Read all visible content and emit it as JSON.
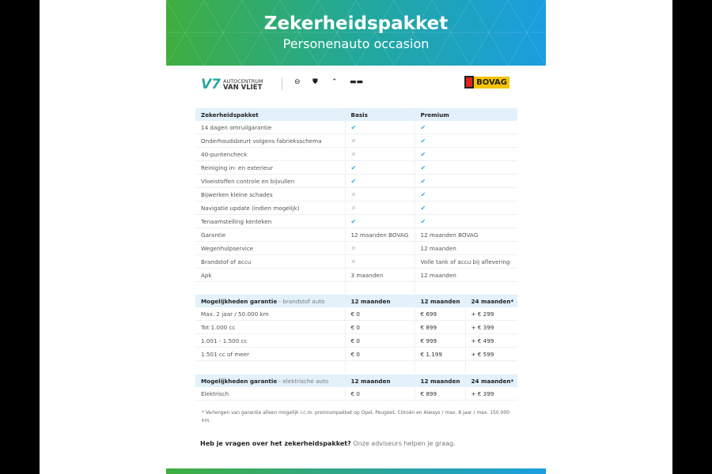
{
  "header": {
    "title": "Zekerheidspakket",
    "subtitle": "Personenauto occasion"
  },
  "logos": {
    "dealer_line1": "AUTOCENTRUM",
    "dealer_line2": "VAN VLIET",
    "brands": [
      "opel-logo",
      "peugeot-logo",
      "citroen-logo",
      "aiways-logo"
    ],
    "bovag": "BOVAG"
  },
  "colors": {
    "accent": "#2ab0d8",
    "header_bg": "#e2f1fa",
    "gradient_start": "#3fae3f",
    "gradient_end": "#1a9ee0"
  },
  "package_table": {
    "headers": [
      "Zekerheidspakket",
      "Basis",
      "Premium"
    ],
    "rows": [
      [
        "14 dagen omruilgarantie",
        "✔",
        "✔"
      ],
      [
        "Onderhoudsbeurt volgens fabrieksschema",
        "✕",
        "✔"
      ],
      [
        "40-puntencheck",
        "✕",
        "✔"
      ],
      [
        "Reiniging in- en exterieur",
        "✔",
        "✔"
      ],
      [
        "Vloeistoffen controle en bijvullen",
        "✔",
        "✔"
      ],
      [
        "Bijwerken kleine schades",
        "✕",
        "✔"
      ],
      [
        "Navigatie update (indien mogelijk)",
        "✕",
        "✔"
      ],
      [
        "Tenaamstelling kenteken",
        "✔",
        "✔"
      ],
      [
        "Garantie",
        "12 maanden BOVAG",
        "12 maanden BOVAG"
      ],
      [
        "Wegenhulpservice",
        "✕",
        "12 maanden"
      ],
      [
        "Brandstof of accu",
        "✕",
        "Volle tank of accu bij aflevering"
      ],
      [
        "Apk",
        "3 maanden",
        "12 maanden"
      ]
    ]
  },
  "fuel_table": {
    "header_bold": "Mogelijkheden garantie",
    "header_sub": " - brandstof auto",
    "cols": [
      "12 maanden",
      "12 maanden",
      "24 maanden*"
    ],
    "rows": [
      [
        "Max. 2 jaar / 50.000 km",
        "€ 0",
        "€ 699",
        "+ € 299"
      ],
      [
        "Tot 1.000 cc",
        "€ 0",
        "€ 899",
        "+ € 399"
      ],
      [
        "1.001 - 1.500 cc",
        "€ 0",
        "€ 999",
        "+ € 499"
      ],
      [
        "1.501 cc of meer",
        "€ 0",
        "€ 1.199",
        "+ € 599"
      ]
    ]
  },
  "ev_table": {
    "header_bold": "Mogelijkheden garantie",
    "header_sub": " - elektrische auto",
    "cols": [
      "12 maanden",
      "12 maanden",
      "24 maanden*"
    ],
    "rows": [
      [
        "Elektrisch",
        "€ 0",
        "€ 899",
        "+ € 399"
      ]
    ]
  },
  "footnote": "* Verlengen van garantie alleen mogelijk i.c.m. premiumpakket op Opel, Peugeot, Citroën en Aiways / max. 8 jaar / max. 150.000 km.",
  "question": {
    "bold": "Heb je vragen over het zekerheidspakket?",
    "text": " Onze adviseurs helpen je graag."
  }
}
